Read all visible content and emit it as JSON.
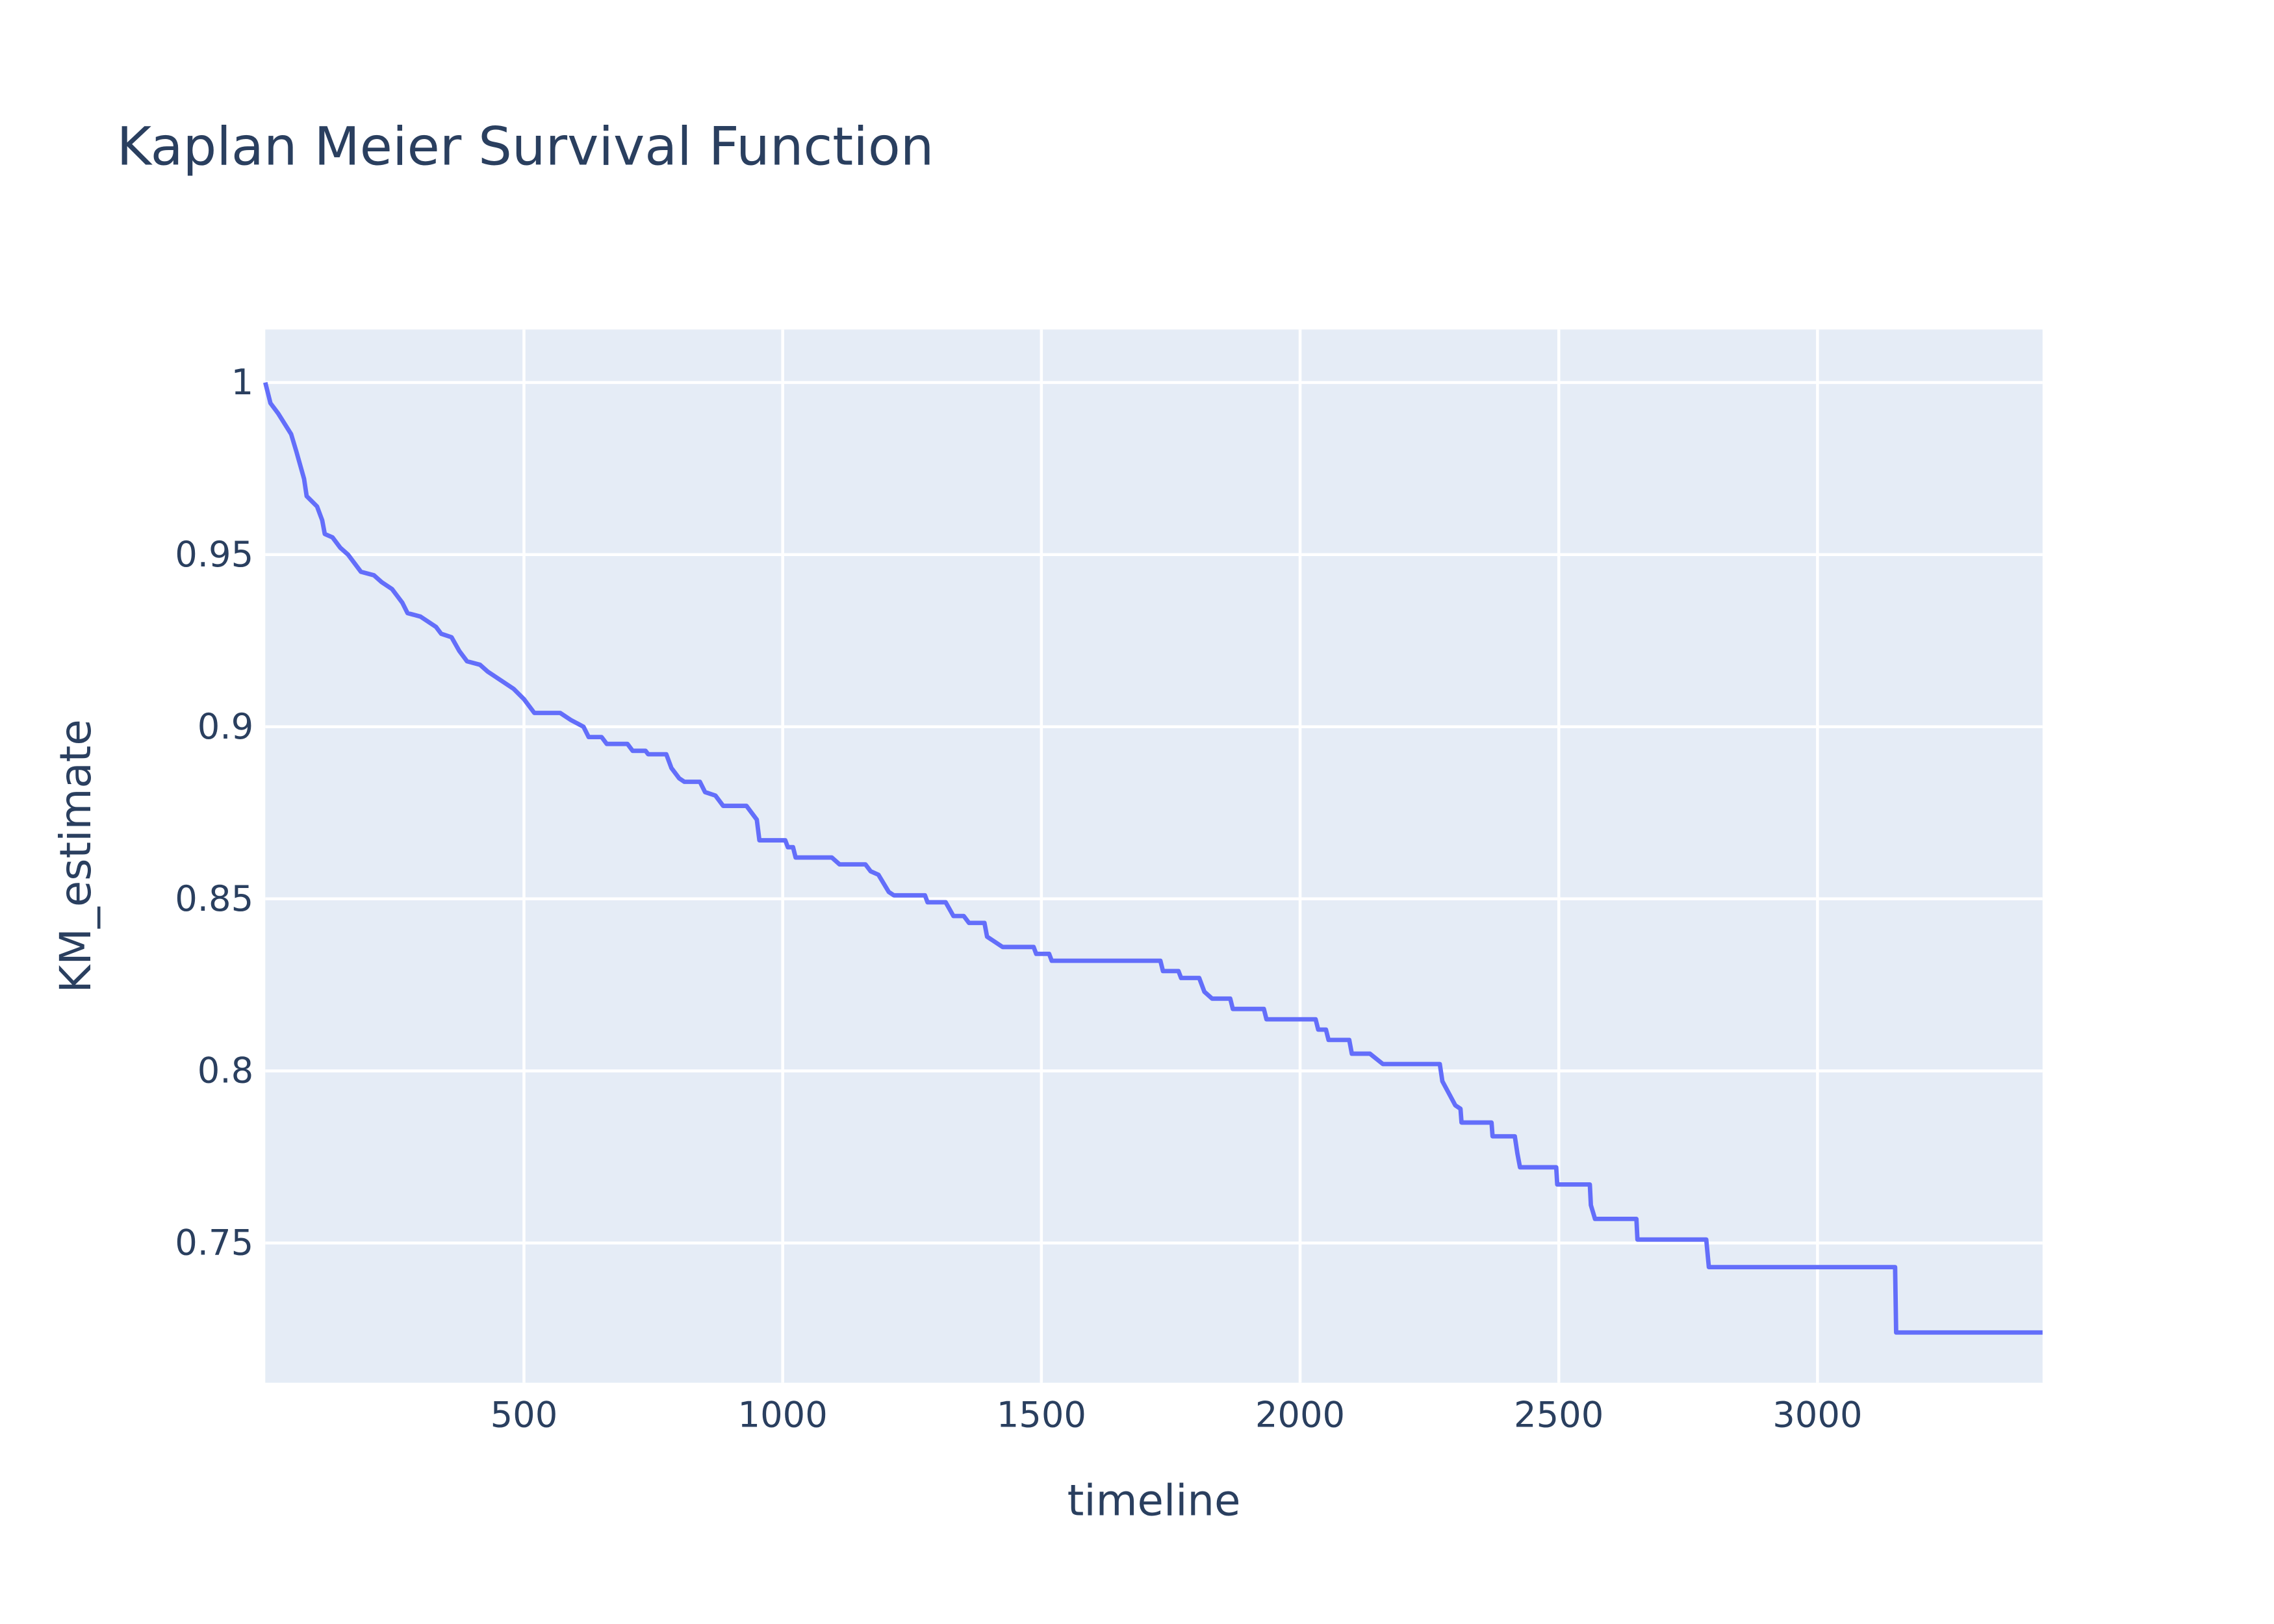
{
  "chart_data": {
    "type": "line",
    "title": "Kaplan Meier Survival Function",
    "x_label": "timeline",
    "y_label": "KM_estimate",
    "color": "#636efa",
    "grid": true,
    "xlim": [
      0,
      3435
    ],
    "ylim": [
      0.7094,
      1.0154
    ],
    "xticks": [
      500,
      1000,
      1500,
      2000,
      2500,
      3000
    ],
    "yticks": [
      0.75,
      0.8,
      0.85,
      0.9,
      0.95,
      1
    ],
    "x": [
      0,
      10,
      25,
      50,
      60,
      75,
      80,
      100,
      110,
      115,
      130,
      145,
      160,
      185,
      210,
      225,
      245,
      255,
      265,
      275,
      300,
      330,
      340,
      360,
      375,
      390,
      415,
      430,
      460,
      480,
      500,
      520,
      570,
      590,
      615,
      625,
      650,
      660,
      700,
      710,
      735,
      740,
      775,
      785,
      800,
      810,
      840,
      850,
      870,
      885,
      930,
      940,
      950,
      955,
      1005,
      1010,
      1020,
      1025,
      1095,
      1110,
      1160,
      1170,
      1185,
      1205,
      1215,
      1275,
      1280,
      1315,
      1330,
      1350,
      1360,
      1390,
      1395,
      1405,
      1425,
      1485,
      1490,
      1515,
      1520,
      1730,
      1735,
      1765,
      1770,
      1805,
      1815,
      1830,
      1865,
      1870,
      1930,
      1935,
      2030,
      2035,
      2050,
      2055,
      2095,
      2100,
      2135,
      2160,
      2270,
      2275,
      2300,
      2310,
      2312,
      2370,
      2372,
      2415,
      2420,
      2425,
      2495,
      2497,
      2560,
      2562,
      2570,
      2650,
      2652,
      2785,
      2790,
      3150,
      3152,
      3435
    ],
    "values": [
      1.0,
      0.994,
      0.991,
      0.985,
      0.98,
      0.972,
      0.967,
      0.964,
      0.96,
      0.956,
      0.955,
      0.952,
      0.95,
      0.945,
      0.944,
      0.942,
      0.94,
      0.938,
      0.936,
      0.933,
      0.932,
      0.929,
      0.927,
      0.926,
      0.922,
      0.919,
      0.918,
      0.916,
      0.913,
      0.911,
      0.908,
      0.904,
      0.904,
      0.902,
      0.9,
      0.897,
      0.897,
      0.895,
      0.895,
      0.893,
      0.893,
      0.892,
      0.892,
      0.888,
      0.885,
      0.884,
      0.884,
      0.881,
      0.88,
      0.877,
      0.877,
      0.875,
      0.873,
      0.867,
      0.867,
      0.865,
      0.865,
      0.862,
      0.862,
      0.86,
      0.86,
      0.858,
      0.857,
      0.852,
      0.851,
      0.851,
      0.849,
      0.849,
      0.845,
      0.845,
      0.843,
      0.843,
      0.839,
      0.838,
      0.836,
      0.836,
      0.834,
      0.834,
      0.832,
      0.832,
      0.829,
      0.829,
      0.827,
      0.827,
      0.823,
      0.821,
      0.821,
      0.818,
      0.818,
      0.815,
      0.815,
      0.812,
      0.812,
      0.809,
      0.809,
      0.805,
      0.805,
      0.802,
      0.802,
      0.797,
      0.79,
      0.789,
      0.785,
      0.785,
      0.781,
      0.781,
      0.776,
      0.772,
      0.772,
      0.767,
      0.767,
      0.761,
      0.757,
      0.757,
      0.751,
      0.751,
      0.743,
      0.743,
      0.724,
      0.724
    ]
  }
}
